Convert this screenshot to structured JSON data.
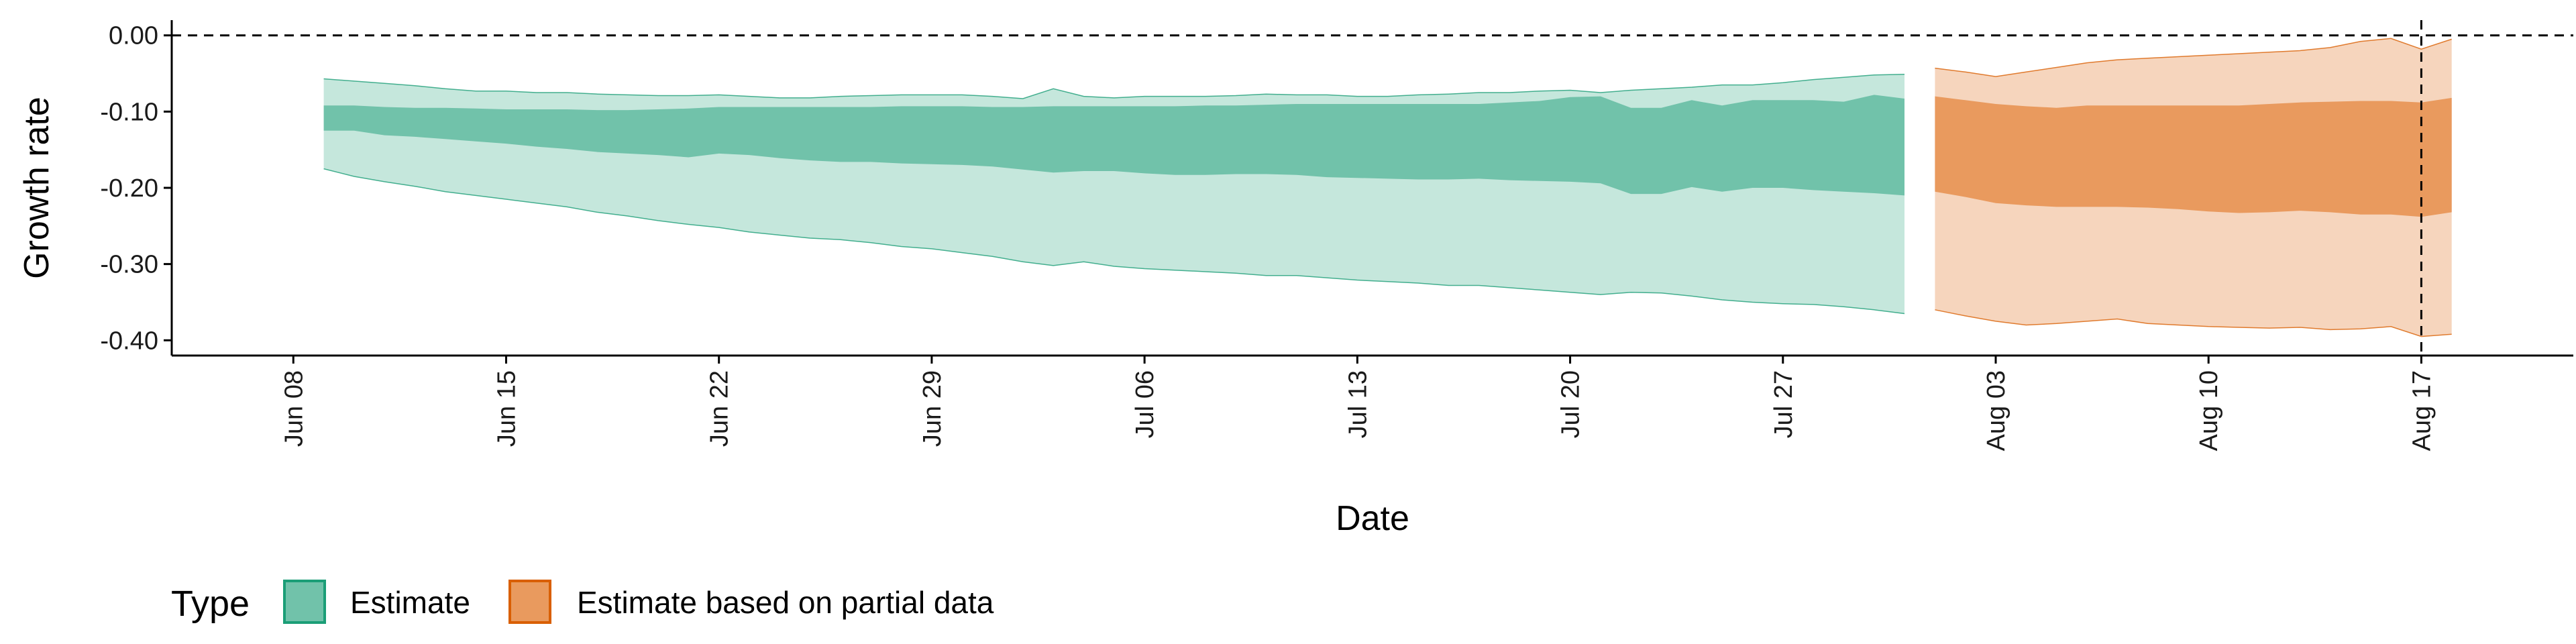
{
  "chart_data": {
    "type": "area",
    "xlabel": "Date",
    "ylabel": "Growth rate",
    "x_axis": {
      "type": "date",
      "range": [
        "2021-06-04",
        "2021-08-22"
      ],
      "tick_dates": [
        "2021-06-08",
        "2021-06-15",
        "2021-06-22",
        "2021-06-29",
        "2021-07-06",
        "2021-07-13",
        "2021-07-20",
        "2021-07-27",
        "2021-08-03",
        "2021-08-10",
        "2021-08-17"
      ],
      "tick_labels": [
        "Jun 08",
        "Jun 15",
        "Jun 22",
        "Jun 29",
        "Jul 06",
        "Jul 13",
        "Jul 20",
        "Jul 27",
        "Aug 03",
        "Aug 10",
        "Aug 17"
      ]
    },
    "y_axis": {
      "range": [
        -0.42,
        0.02
      ],
      "ticks": [
        0.0,
        -0.1,
        -0.2,
        -0.3,
        -0.4
      ],
      "tick_labels": [
        "0.00",
        "-0.10",
        "-0.20",
        "-0.30",
        "-0.40"
      ]
    },
    "reference_lines": [
      {
        "orientation": "horizontal",
        "value": 0.0,
        "style": "dashed"
      },
      {
        "orientation": "vertical",
        "value": "2021-08-17",
        "style": "dashed"
      }
    ],
    "legend": {
      "title": "Type",
      "position": "bottom-left",
      "entries": [
        {
          "label": "Estimate",
          "fill": "#71c2aa",
          "stroke": "#1b9e77"
        },
        {
          "label": "Estimate based on partial data",
          "fill": "#e99a5e",
          "stroke": "#d95f02"
        }
      ]
    },
    "series": [
      {
        "name": "Estimate",
        "color_outer": "#c5e7dc",
        "color_inner": "#71c2aa",
        "stroke": "#1b9e77",
        "dates": [
          "2021-06-09",
          "2021-06-10",
          "2021-06-11",
          "2021-06-12",
          "2021-06-13",
          "2021-06-14",
          "2021-06-15",
          "2021-06-16",
          "2021-06-17",
          "2021-06-18",
          "2021-06-19",
          "2021-06-20",
          "2021-06-21",
          "2021-06-22",
          "2021-06-23",
          "2021-06-24",
          "2021-06-25",
          "2021-06-26",
          "2021-06-27",
          "2021-06-28",
          "2021-06-29",
          "2021-06-30",
          "2021-07-01",
          "2021-07-02",
          "2021-07-03",
          "2021-07-04",
          "2021-07-05",
          "2021-07-06",
          "2021-07-07",
          "2021-07-08",
          "2021-07-09",
          "2021-07-10",
          "2021-07-11",
          "2021-07-12",
          "2021-07-13",
          "2021-07-14",
          "2021-07-15",
          "2021-07-16",
          "2021-07-17",
          "2021-07-18",
          "2021-07-19",
          "2021-07-20",
          "2021-07-21",
          "2021-07-22",
          "2021-07-23",
          "2021-07-24",
          "2021-07-25",
          "2021-07-26",
          "2021-07-27",
          "2021-07-28",
          "2021-07-29",
          "2021-07-30",
          "2021-07-31"
        ],
        "outer_upper": [
          -0.057,
          -0.06,
          -0.063,
          -0.066,
          -0.07,
          -0.073,
          -0.073,
          -0.075,
          -0.075,
          -0.077,
          -0.078,
          -0.079,
          -0.079,
          -0.078,
          -0.08,
          -0.082,
          -0.082,
          -0.08,
          -0.079,
          -0.078,
          -0.078,
          -0.078,
          -0.08,
          -0.083,
          -0.07,
          -0.08,
          -0.082,
          -0.08,
          -0.08,
          -0.08,
          -0.079,
          -0.077,
          -0.078,
          -0.078,
          -0.08,
          -0.08,
          -0.078,
          -0.077,
          -0.075,
          -0.075,
          -0.073,
          -0.072,
          -0.075,
          -0.072,
          -0.07,
          -0.068,
          -0.065,
          -0.065,
          -0.062,
          -0.058,
          -0.055,
          -0.052,
          -0.051
        ],
        "inner_upper": [
          -0.092,
          -0.092,
          -0.094,
          -0.095,
          -0.095,
          -0.096,
          -0.097,
          -0.097,
          -0.097,
          -0.098,
          -0.098,
          -0.097,
          -0.096,
          -0.094,
          -0.094,
          -0.094,
          -0.094,
          -0.094,
          -0.094,
          -0.093,
          -0.093,
          -0.093,
          -0.094,
          -0.094,
          -0.093,
          -0.093,
          -0.093,
          -0.093,
          -0.093,
          -0.092,
          -0.092,
          -0.091,
          -0.09,
          -0.09,
          -0.09,
          -0.09,
          -0.09,
          -0.09,
          -0.09,
          -0.088,
          -0.086,
          -0.081,
          -0.08,
          -0.095,
          -0.095,
          -0.085,
          -0.092,
          -0.085,
          -0.085,
          -0.085,
          -0.087,
          -0.078,
          -0.083
        ],
        "inner_lower": [
          -0.125,
          -0.125,
          -0.131,
          -0.133,
          -0.136,
          -0.139,
          -0.142,
          -0.146,
          -0.149,
          -0.153,
          -0.155,
          -0.157,
          -0.16,
          -0.155,
          -0.157,
          -0.161,
          -0.164,
          -0.166,
          -0.166,
          -0.168,
          -0.169,
          -0.17,
          -0.172,
          -0.176,
          -0.18,
          -0.178,
          -0.178,
          -0.181,
          -0.183,
          -0.183,
          -0.182,
          -0.182,
          -0.183,
          -0.186,
          -0.187,
          -0.188,
          -0.189,
          -0.189,
          -0.188,
          -0.19,
          -0.191,
          -0.192,
          -0.194,
          -0.208,
          -0.208,
          -0.199,
          -0.205,
          -0.2,
          -0.2,
          -0.203,
          -0.205,
          -0.207,
          -0.21
        ],
        "outer_lower": [
          -0.175,
          -0.185,
          -0.192,
          -0.198,
          -0.205,
          -0.21,
          -0.215,
          -0.22,
          -0.225,
          -0.232,
          -0.237,
          -0.243,
          -0.248,
          -0.252,
          -0.258,
          -0.262,
          -0.266,
          -0.268,
          -0.272,
          -0.277,
          -0.28,
          -0.285,
          -0.29,
          -0.297,
          -0.302,
          -0.297,
          -0.303,
          -0.306,
          -0.308,
          -0.31,
          -0.312,
          -0.315,
          -0.315,
          -0.318,
          -0.321,
          -0.323,
          -0.325,
          -0.328,
          -0.328,
          -0.331,
          -0.334,
          -0.337,
          -0.34,
          -0.337,
          -0.338,
          -0.342,
          -0.347,
          -0.35,
          -0.352,
          -0.353,
          -0.356,
          -0.36,
          -0.365
        ]
      },
      {
        "name": "Estimate based on partial data",
        "color_outer": "#f6d5bd",
        "color_inner": "#e99a5e",
        "stroke": "#d95f02",
        "dates": [
          "2021-08-01",
          "2021-08-02",
          "2021-08-03",
          "2021-08-04",
          "2021-08-05",
          "2021-08-06",
          "2021-08-07",
          "2021-08-08",
          "2021-08-09",
          "2021-08-10",
          "2021-08-11",
          "2021-08-12",
          "2021-08-13",
          "2021-08-14",
          "2021-08-15",
          "2021-08-16",
          "2021-08-17",
          "2021-08-18"
        ],
        "outer_upper": [
          -0.043,
          -0.048,
          -0.054,
          -0.048,
          -0.042,
          -0.036,
          -0.032,
          -0.03,
          -0.028,
          -0.026,
          -0.024,
          -0.022,
          -0.02,
          -0.016,
          -0.008,
          -0.004,
          -0.018,
          -0.005
        ],
        "inner_upper": [
          -0.08,
          -0.085,
          -0.09,
          -0.093,
          -0.095,
          -0.092,
          -0.092,
          -0.092,
          -0.092,
          -0.092,
          -0.092,
          -0.09,
          -0.088,
          -0.087,
          -0.086,
          -0.086,
          -0.088,
          -0.082
        ],
        "inner_lower": [
          -0.205,
          -0.212,
          -0.22,
          -0.223,
          -0.225,
          -0.225,
          -0.225,
          -0.226,
          -0.228,
          -0.231,
          -0.233,
          -0.232,
          -0.23,
          -0.232,
          -0.235,
          -0.235,
          -0.238,
          -0.232
        ],
        "outer_lower": [
          -0.36,
          -0.368,
          -0.375,
          -0.38,
          -0.378,
          -0.375,
          -0.372,
          -0.378,
          -0.38,
          -0.382,
          -0.383,
          -0.384,
          -0.383,
          -0.386,
          -0.385,
          -0.382,
          -0.395,
          -0.392
        ]
      }
    ]
  }
}
